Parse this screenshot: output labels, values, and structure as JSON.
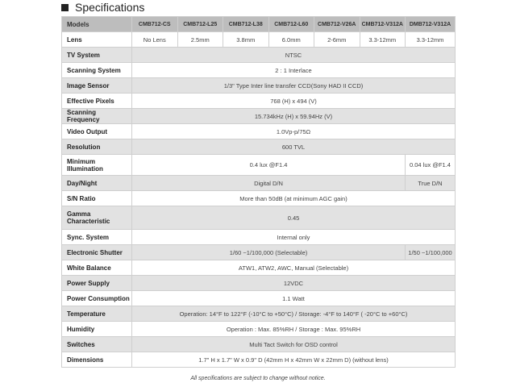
{
  "title": "Specifications",
  "header": {
    "label": "Models",
    "models": [
      "CMB712-CS",
      "CMB712-L25",
      "CMB712-L38",
      "CMB712-L60",
      "CMB712-V26A",
      "CMB712-V312A",
      "DMB712-V312A"
    ]
  },
  "rows": [
    {
      "label": "Lens",
      "cells": [
        {
          "text": "No Lens",
          "span": 1
        },
        {
          "text": "2.5mm",
          "span": 1
        },
        {
          "text": "3.8mm",
          "span": 1
        },
        {
          "text": "6.0mm",
          "span": 1
        },
        {
          "text": "2-6mm",
          "span": 1
        },
        {
          "text": "3.3-12mm",
          "span": 1
        },
        {
          "text": "3.3-12mm",
          "span": 1
        }
      ]
    },
    {
      "label": "TV System",
      "cells": [
        {
          "text": "NTSC",
          "span": 7
        }
      ]
    },
    {
      "label": "Scanning System",
      "cells": [
        {
          "text": "2 : 1 Interlace",
          "span": 7
        }
      ]
    },
    {
      "label": "Image Sensor",
      "cells": [
        {
          "text": "1/3\" Type Inter line transfer CCD(Sony HAD II CCD)",
          "span": 7
        }
      ]
    },
    {
      "label": "Effective Pixels",
      "cells": [
        {
          "text": "768 (H) x 494 (V)",
          "span": 7
        }
      ]
    },
    {
      "label": "Scanning Frequency",
      "cells": [
        {
          "text": "15.734kHz (H) x 59.94Hz (V)",
          "span": 7
        }
      ]
    },
    {
      "label": "Video Output",
      "cells": [
        {
          "text": "1.0Vp-p/75Ω",
          "span": 7
        }
      ]
    },
    {
      "label": "Resolution",
      "cells": [
        {
          "text": "600 TVL",
          "span": 7
        }
      ]
    },
    {
      "label": "Minimum Illumination",
      "tall": 1,
      "cells": [
        {
          "text": "0.4 lux @F1.4",
          "span": 6
        },
        {
          "text": "0.04 lux @F1.4",
          "span": 1
        }
      ]
    },
    {
      "label": "Day/Night",
      "cells": [
        {
          "text": "Digital D/N",
          "span": 6
        },
        {
          "text": "True D/N",
          "span": 1
        }
      ]
    },
    {
      "label": "S/N Ratio",
      "cells": [
        {
          "text": "More than 50dB (at minimum AGC gain)",
          "span": 7
        }
      ]
    },
    {
      "label": "Gamma Characteristic",
      "tall": 2,
      "cells": [
        {
          "text": "0.45",
          "span": 7
        }
      ]
    },
    {
      "label": "Sync. System",
      "cells": [
        {
          "text": "Internal only",
          "span": 7
        }
      ]
    },
    {
      "label": "Electronic Shutter",
      "cells": [
        {
          "text": "1/60 ~1/100,000 (Selectable)",
          "span": 6
        },
        {
          "text": "1/50 ~1/100,000",
          "span": 1
        }
      ]
    },
    {
      "label": "White Balance",
      "cells": [
        {
          "text": "ATW1, ATW2, AWC, Manual (Selectable)",
          "span": 7
        }
      ]
    },
    {
      "label": "Power Supply",
      "cells": [
        {
          "text": "12VDC",
          "span": 7
        }
      ]
    },
    {
      "label": "Power Consumption",
      "cells": [
        {
          "text": "1.1 Watt",
          "span": 7
        }
      ]
    },
    {
      "label": "Temperature",
      "cells": [
        {
          "text": "Operation: 14°F to 122°F (-10°C to +50°C) / Storage: -4°F to 140°F  ( -20°C to +60°C)",
          "span": 7
        }
      ]
    },
    {
      "label": "Humidity",
      "cells": [
        {
          "text": "Operation : Max. 85%RH / Storage : Max. 95%RH",
          "span": 7
        }
      ]
    },
    {
      "label": "Switches",
      "cells": [
        {
          "text": "Multi Tact Switch for OSD control",
          "span": 7
        }
      ]
    },
    {
      "label": "Dimensions",
      "cells": [
        {
          "text": "1.7\" H x 1.7\" W x 0.9\" D (42mm H x 42mm W x 22mm D) (without lens)",
          "span": 7
        }
      ]
    }
  ],
  "note": "All specifications are subject to change without notice."
}
